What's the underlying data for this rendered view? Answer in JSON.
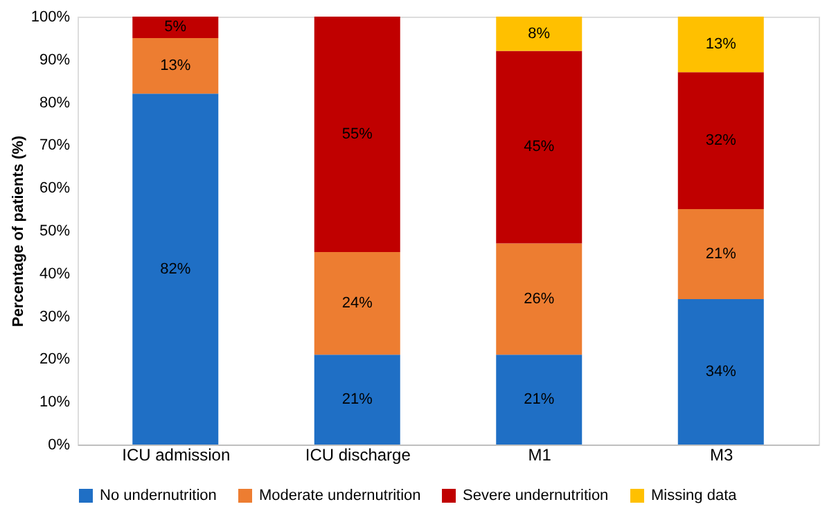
{
  "chart_data": {
    "type": "bar",
    "stacked": true,
    "ylabel": "Percentage of patients (%)",
    "categories": [
      "ICU admission",
      "ICU discharge",
      "M1",
      "M3"
    ],
    "series": [
      {
        "name": "No undernutrition",
        "color": "#1f6fc5",
        "values": [
          82,
          21,
          21,
          34
        ],
        "value_labels": [
          "82%",
          "21%",
          "21%",
          "34%"
        ]
      },
      {
        "name": "Moderate undernutrition",
        "color": "#ed7d31",
        "values": [
          13,
          24,
          26,
          21
        ],
        "value_labels": [
          "13%",
          "24%",
          "26%",
          "21%"
        ]
      },
      {
        "name": "Severe undernutrition",
        "color": "#c00000",
        "values": [
          5,
          55,
          45,
          32
        ],
        "value_labels": [
          "5%",
          "55%",
          "45%",
          "32%"
        ]
      },
      {
        "name": "Missing data",
        "color": "#ffc000",
        "values": [
          null,
          null,
          8,
          13
        ],
        "value_labels": [
          null,
          null,
          "8%",
          "13%"
        ]
      }
    ],
    "ylim": [
      0,
      100
    ],
    "yticks": [
      {
        "value": 0,
        "label": "0%"
      },
      {
        "value": 10,
        "label": "10%"
      },
      {
        "value": 20,
        "label": "20%"
      },
      {
        "value": 30,
        "label": "30%"
      },
      {
        "value": 40,
        "label": "40%"
      },
      {
        "value": 50,
        "label": "50%"
      },
      {
        "value": 60,
        "label": "60%"
      },
      {
        "value": 70,
        "label": "70%"
      },
      {
        "value": 80,
        "label": "80%"
      },
      {
        "value": 90,
        "label": "90%"
      },
      {
        "value": 100,
        "label": "100%"
      }
    ],
    "grid": false,
    "legend": "bottom"
  }
}
